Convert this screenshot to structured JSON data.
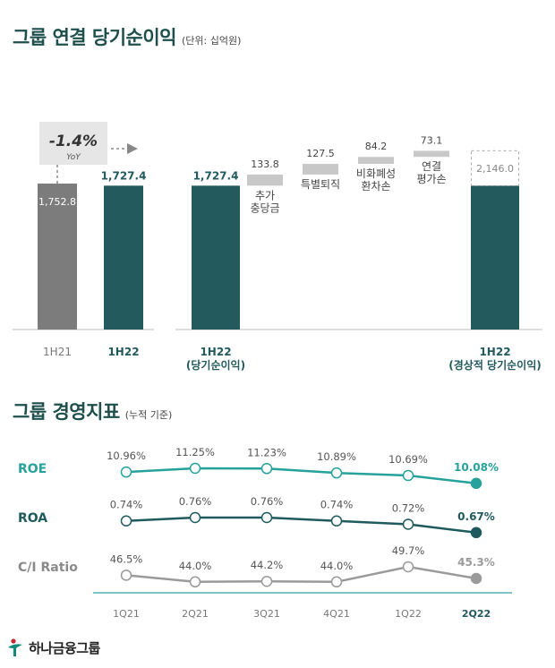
{
  "titles": {
    "net_income": "그룹 연결 당기순이익",
    "net_income_unit": "(단위: 십억원)",
    "metrics": "그룹 경영지표",
    "metrics_unit": "(누적 기준)"
  },
  "footer": {
    "brand": "하나금융그룹"
  },
  "colors": {
    "teal_dark": "#225a5e",
    "gray_bar": "#7c7c7c",
    "gray_light": "#c8c8c8",
    "roe": "#26a29b",
    "roa": "#1f5a5e",
    "ci": "#9a9a9a",
    "axis": "#3aa0a0"
  },
  "chart_data": [
    {
      "type": "bar",
      "categories": [
        "1H21",
        "1H22"
      ],
      "values": [
        1752.8,
        1727.4
      ],
      "value_labels": [
        "1,752.8",
        "1,727.4"
      ],
      "ylim": [
        0,
        2200
      ],
      "yoy": {
        "value": "-1.4%",
        "label": "YoY"
      }
    },
    {
      "type": "bar",
      "subtype": "waterfall",
      "ylim": [
        0,
        2200
      ],
      "steps": [
        {
          "label_lines": [
            "1H22",
            "(당기순이익)"
          ],
          "value": 1727.4,
          "value_label": "1,727.4",
          "kind": "total"
        },
        {
          "label_lines": [
            "추가",
            "충당금"
          ],
          "value": 133.8,
          "value_label": "133.8",
          "kind": "delta"
        },
        {
          "label_lines": [
            "특별퇴직"
          ],
          "value": 127.5,
          "value_label": "127.5",
          "kind": "delta"
        },
        {
          "label_lines": [
            "비화폐성",
            "환차손"
          ],
          "value": 84.2,
          "value_label": "84.2",
          "kind": "delta"
        },
        {
          "label_lines": [
            "연결",
            "평가손"
          ],
          "value": 73.1,
          "value_label": "73.1",
          "kind": "delta"
        },
        {
          "label_lines": [
            "1H22",
            "(경상적 당기순이익)"
          ],
          "value": 2146.0,
          "value_label": "2,146.0",
          "kind": "total"
        }
      ]
    },
    {
      "type": "line",
      "categories": [
        "1Q21",
        "2Q21",
        "3Q21",
        "4Q21",
        "1Q22",
        "2Q22"
      ],
      "series": [
        {
          "name": "ROE",
          "values": [
            10.96,
            11.25,
            11.23,
            10.89,
            10.69,
            10.08
          ],
          "labels": [
            "10.96%",
            "11.25%",
            "11.23%",
            "10.89%",
            "10.69%",
            "10.08%"
          ]
        },
        {
          "name": "ROA",
          "values": [
            0.74,
            0.76,
            0.76,
            0.74,
            0.72,
            0.67
          ],
          "labels": [
            "0.74%",
            "0.76%",
            "0.76%",
            "0.74%",
            "0.72%",
            "0.67%"
          ]
        },
        {
          "name": "C/I Ratio",
          "values": [
            46.5,
            44.0,
            44.2,
            44.0,
            49.7,
            45.3
          ],
          "labels": [
            "46.5%",
            "44.0%",
            "44.2%",
            "44.0%",
            "49.7%",
            "45.3%"
          ]
        }
      ]
    }
  ]
}
